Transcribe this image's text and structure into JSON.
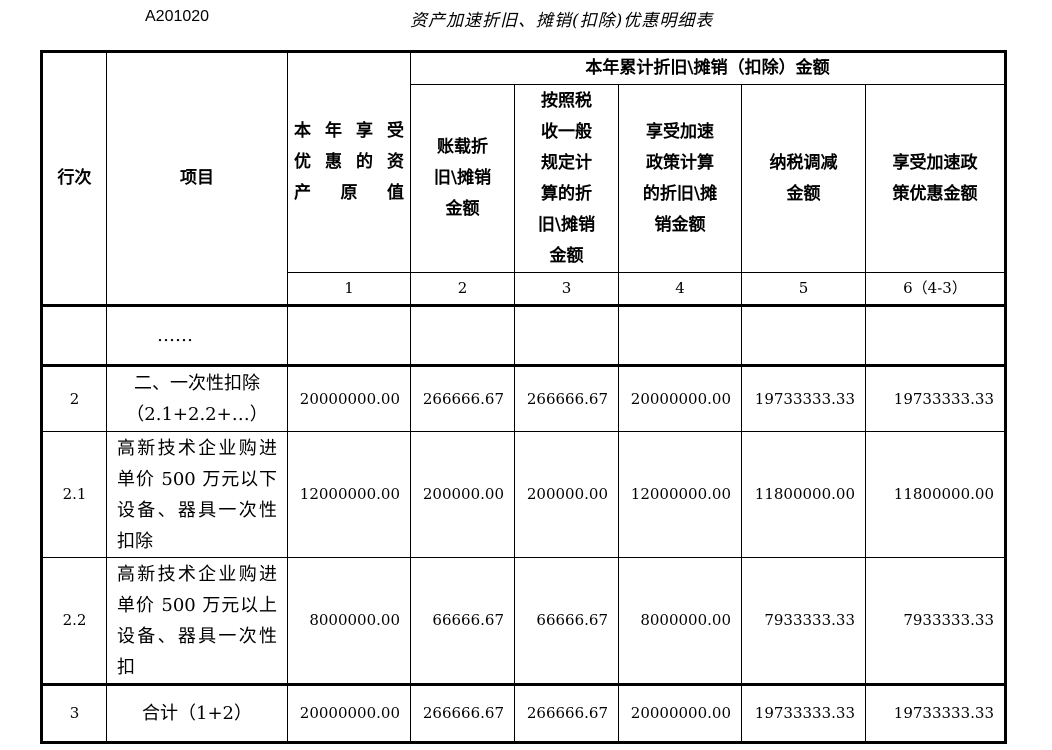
{
  "form_code": "A201020",
  "title": "资产加速折旧、摊销(扣除)优惠明细表",
  "headers": {
    "row_no": "行次",
    "item": "项目",
    "original_value": "本年享受\n优惠的资\n产原值",
    "group": "本年累计折旧\\摊销（扣除）金额",
    "book": "账载折\n旧\\摊销\n金额",
    "general": "按照税\n收一般\n规定计\n算的折\n旧\\摊销\n金额",
    "accelerated": "享受加速\n政策计算\n的折旧\\摊\n销金额",
    "tax_adjust": "纳税调减\n金额",
    "benefit": "享受加速政\n策优惠金额"
  },
  "col_numbers": [
    "1",
    "2",
    "3",
    "4",
    "5",
    "6（4-3）"
  ],
  "rows": [
    {
      "no": "",
      "item": "……",
      "values": [
        "",
        "",
        "",
        "",
        "",
        ""
      ]
    },
    {
      "no": "2",
      "item": "二、一次性扣除\n（2.1+2.2+…）",
      "values": [
        "20000000.00",
        "266666.67",
        "266666.67",
        "20000000.00",
        "19733333.33",
        "19733333.33"
      ]
    },
    {
      "no": "2.1",
      "item": "高新技术企业购进单价 500 万元以下设备、器具一次性扣除",
      "values": [
        "12000000.00",
        "200000.00",
        "200000.00",
        "12000000.00",
        "11800000.00",
        "11800000.00"
      ]
    },
    {
      "no": "2.2",
      "item": "高新技术企业购进单价 500 万元以上设备、器具一次性扣",
      "values": [
        "8000000.00",
        "66666.67",
        "66666.67",
        "8000000.00",
        "7933333.33",
        "7933333.33"
      ]
    },
    {
      "no": "3",
      "item": "合计（1+2）",
      "values": [
        "20000000.00",
        "266666.67",
        "266666.67",
        "20000000.00",
        "19733333.33",
        "19733333.33"
      ]
    }
  ]
}
